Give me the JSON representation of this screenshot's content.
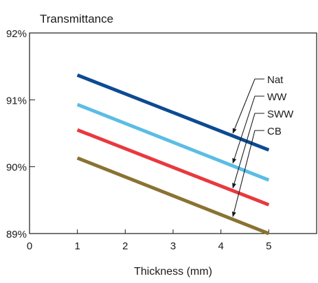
{
  "chart_data": {
    "type": "line",
    "title": "Transmittance",
    "xlabel": "Thickness (mm)",
    "ylabel": "",
    "xlim": [
      0,
      6
    ],
    "ylim": [
      89,
      92
    ],
    "x_ticks": [
      "0",
      "1",
      "2",
      "3",
      "4",
      "5"
    ],
    "y_ticks": [
      "89%",
      "90%",
      "91%",
      "92%"
    ],
    "grid": false,
    "series": [
      {
        "name": "Nat",
        "color": "#0d4a93",
        "x": [
          1,
          5
        ],
        "y": [
          91.37,
          90.25
        ]
      },
      {
        "name": "WW",
        "color": "#5bbde4",
        "x": [
          1,
          5
        ],
        "y": [
          90.93,
          89.8
        ]
      },
      {
        "name": "SWW",
        "color": "#e8393f",
        "x": [
          1,
          5
        ],
        "y": [
          90.55,
          89.43
        ]
      },
      {
        "name": "CB",
        "color": "#8a7232",
        "x": [
          1,
          5
        ],
        "y": [
          90.13,
          89.0
        ]
      }
    ]
  }
}
